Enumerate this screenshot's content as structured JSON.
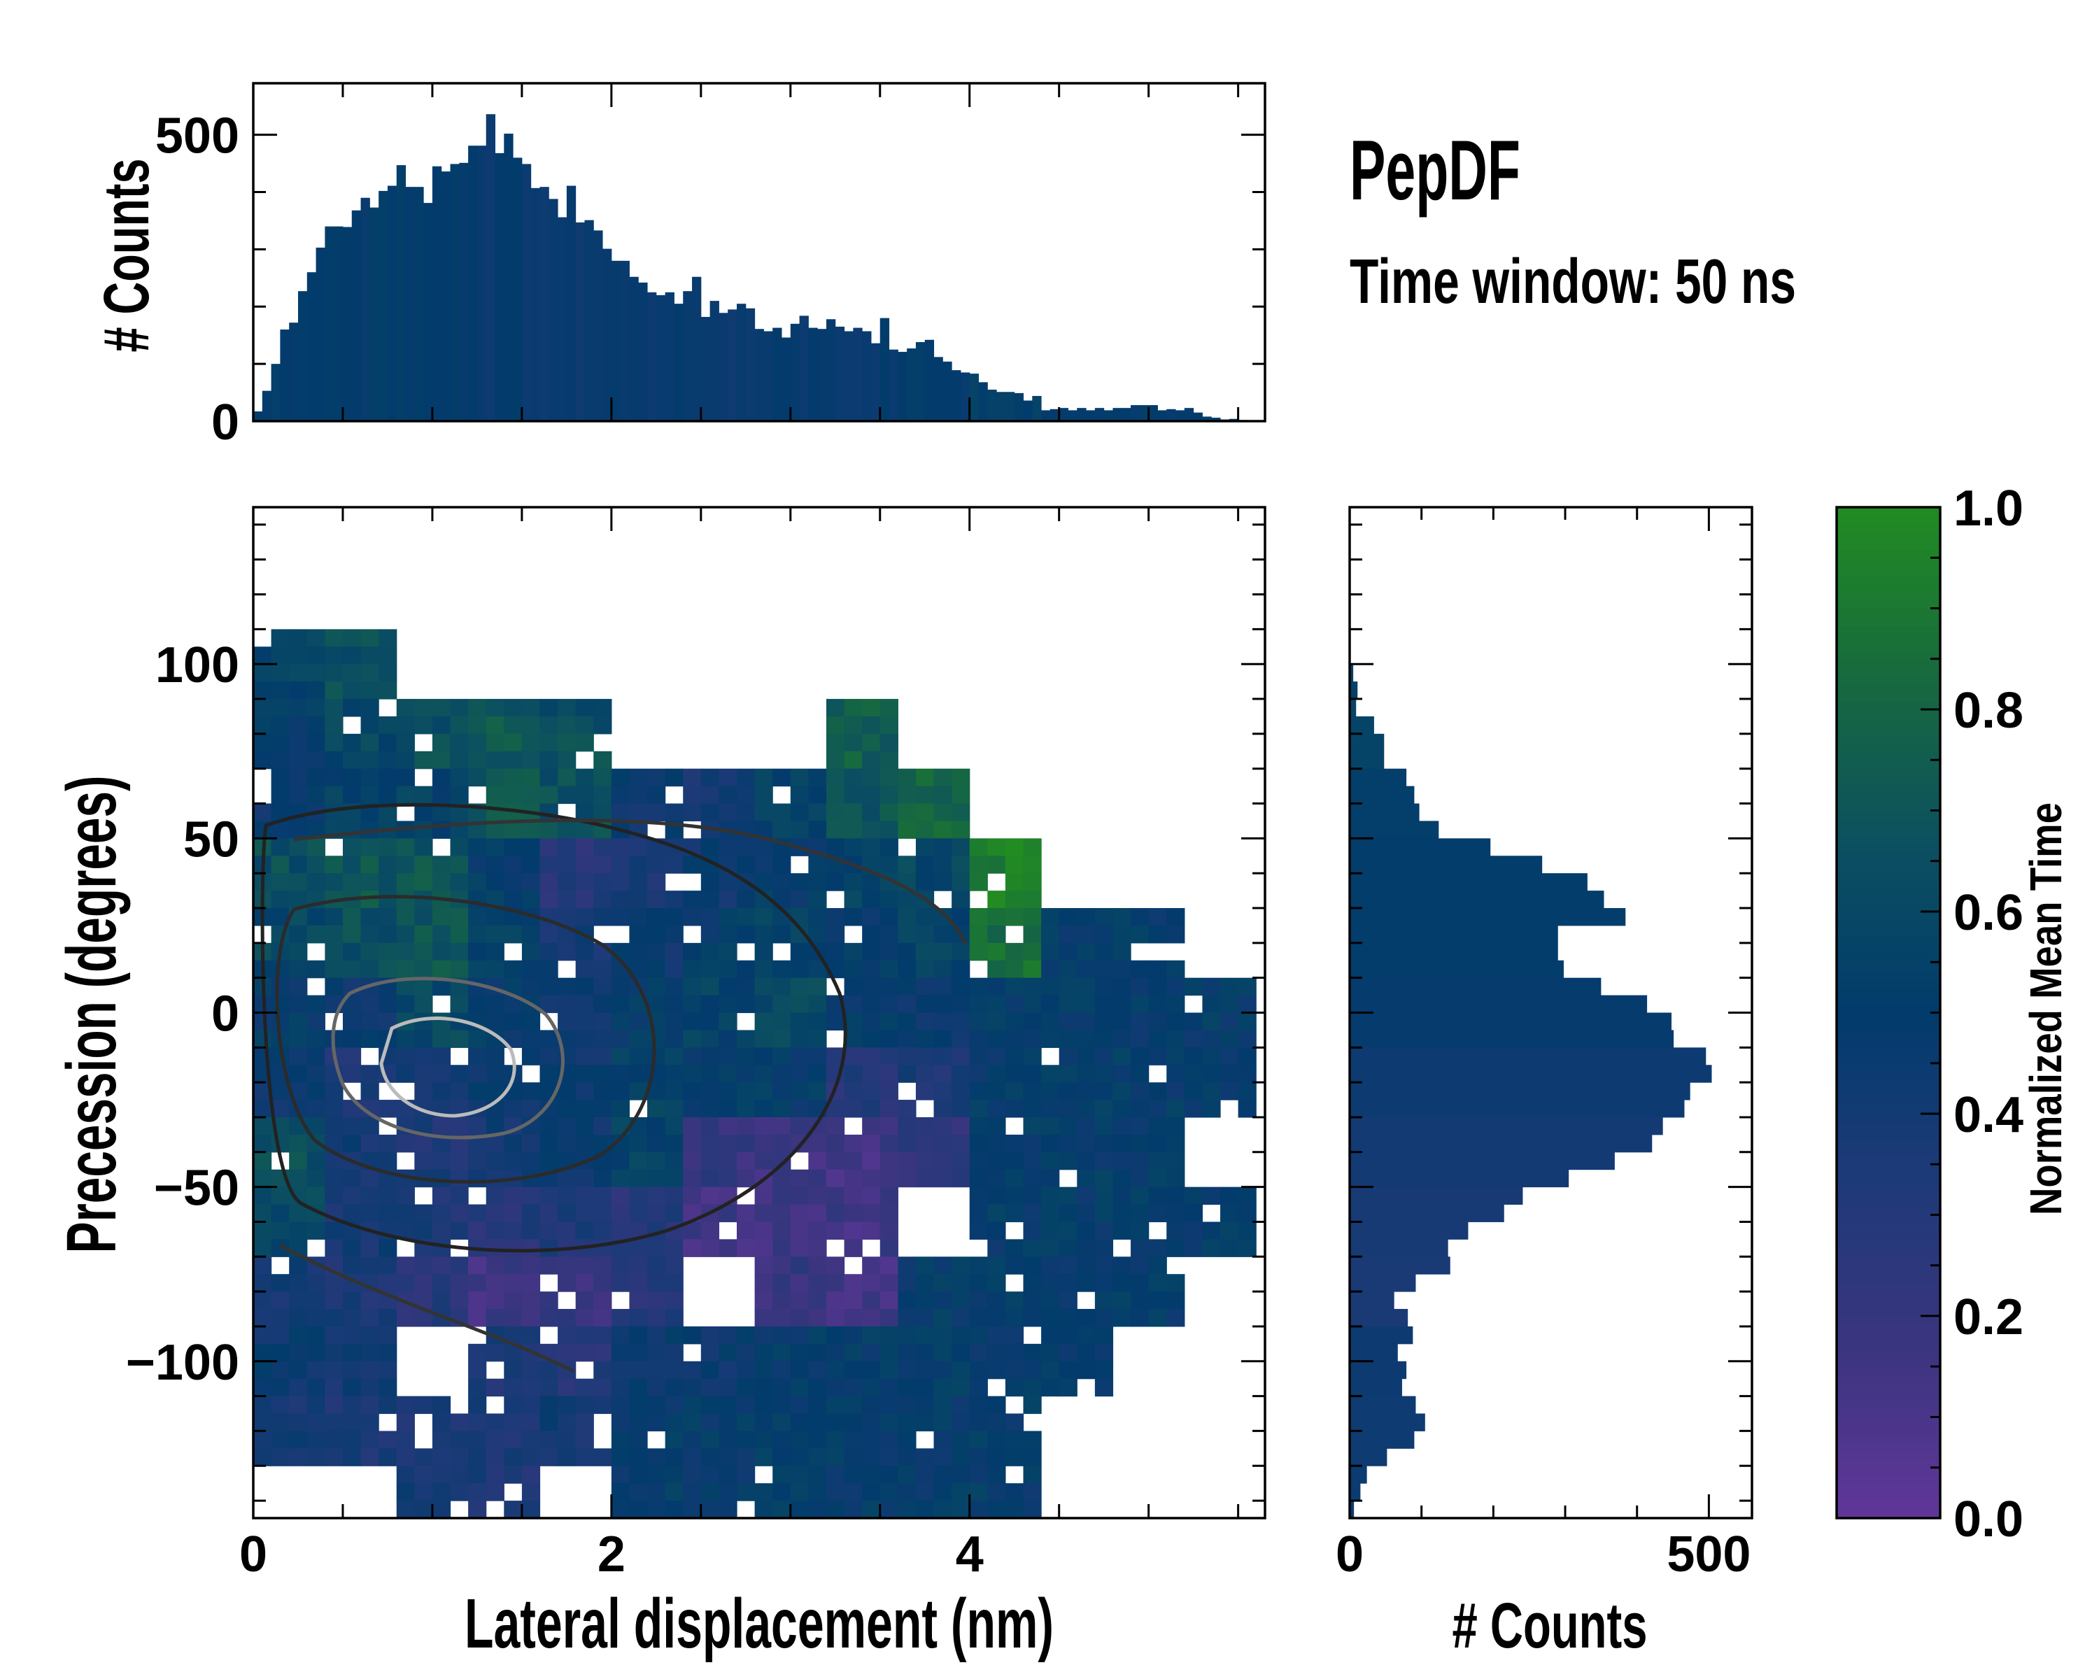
{
  "title": "PepDF",
  "subtitle": "Time window: 50 ns",
  "chart_data": [
    {
      "type": "heatmap",
      "name": "main",
      "xlabel": "Lateral displacement (nm)",
      "ylabel": "Precession (degrees)",
      "xlim": [
        0,
        5.65
      ],
      "ylim": [
        -145,
        145
      ],
      "xticks": [
        "0",
        "2",
        "4"
      ],
      "xtick_values": [
        0,
        2,
        4
      ],
      "yticks": [
        "100",
        "50",
        "0",
        "−50",
        "−100"
      ],
      "ytick_values": [
        100,
        50,
        0,
        -50,
        -100
      ],
      "x_bin_edges_start": 0,
      "x_bin_width": 0.4,
      "y_bin_centers": [
        140,
        120,
        100,
        80,
        60,
        40,
        20,
        0,
        -20,
        -40,
        -60,
        -80,
        -100,
        -120,
        -140
      ],
      "y_bin_height": 20,
      "values": [
        [
          null,
          null,
          null,
          null,
          null,
          null,
          null,
          null,
          null,
          null,
          null,
          null,
          null,
          null
        ],
        [
          null,
          null,
          null,
          null,
          null,
          null,
          null,
          null,
          null,
          null,
          null,
          null,
          null,
          null
        ],
        [
          0.55,
          0.65,
          null,
          null,
          null,
          null,
          null,
          null,
          null,
          null,
          null,
          null,
          null,
          null
        ],
        [
          0.5,
          0.6,
          0.65,
          0.7,
          0.65,
          null,
          null,
          null,
          0.75,
          null,
          null,
          null,
          null,
          null
        ],
        [
          0.45,
          0.55,
          0.55,
          0.7,
          0.65,
          0.45,
          0.4,
          0.55,
          0.7,
          0.8,
          null,
          null,
          null,
          null
        ],
        [
          0.65,
          0.7,
          0.7,
          0.5,
          0.3,
          0.35,
          0.45,
          0.5,
          0.55,
          0.6,
          0.95,
          null,
          null,
          null
        ],
        [
          0.6,
          0.65,
          0.7,
          0.55,
          0.4,
          0.45,
          0.5,
          0.55,
          0.5,
          0.55,
          0.85,
          0.5,
          0.5,
          null
        ],
        [
          0.5,
          0.45,
          0.6,
          0.5,
          0.45,
          0.5,
          0.55,
          0.6,
          0.5,
          0.45,
          0.5,
          0.5,
          0.5,
          0.5
        ],
        [
          0.45,
          0.35,
          0.4,
          0.45,
          0.45,
          0.55,
          0.5,
          0.5,
          0.3,
          0.35,
          0.5,
          0.5,
          0.5,
          0.5
        ],
        [
          0.65,
          0.4,
          0.35,
          0.4,
          0.45,
          0.55,
          0.2,
          0.15,
          0.15,
          0.25,
          0.5,
          0.5,
          0.5,
          null
        ],
        [
          0.6,
          0.4,
          0.35,
          0.3,
          0.35,
          0.3,
          0.15,
          0.15,
          0.15,
          null,
          0.5,
          0.5,
          0.5,
          0.5
        ],
        [
          0.4,
          0.35,
          0.3,
          0.15,
          0.2,
          0.3,
          null,
          0.2,
          0.15,
          0.5,
          0.5,
          0.5,
          0.5,
          null
        ],
        [
          0.45,
          0.4,
          null,
          0.35,
          0.3,
          0.45,
          0.45,
          0.5,
          0.5,
          0.5,
          0.5,
          0.5,
          null,
          null
        ],
        [
          0.4,
          0.35,
          0.35,
          0.35,
          0.4,
          0.5,
          0.5,
          0.5,
          0.5,
          0.5,
          0.5,
          null,
          null,
          null
        ],
        [
          null,
          null,
          0.4,
          0.35,
          null,
          0.5,
          0.5,
          0.5,
          0.5,
          0.5,
          0.5,
          null,
          null,
          null
        ]
      ]
    },
    {
      "type": "bar",
      "name": "top-histogram",
      "ylabel": "# Counts",
      "ylim": [
        0,
        590
      ],
      "yticks": [
        "0",
        "500"
      ],
      "ytick_values": [
        0,
        500
      ],
      "x_start": 0,
      "bin_width": 0.05,
      "values": [
        17,
        53,
        100,
        160,
        172,
        227,
        260,
        303,
        340,
        340,
        339,
        368,
        390,
        373,
        402,
        411,
        447,
        409,
        409,
        381,
        445,
        436,
        449,
        451,
        481,
        481,
        536,
        468,
        502,
        460,
        449,
        407,
        409,
        388,
        356,
        411,
        347,
        351,
        333,
        301,
        280,
        280,
        252,
        242,
        225,
        220,
        225,
        205,
        227,
        252,
        182,
        210,
        189,
        195,
        205,
        197,
        161,
        157,
        163,
        146,
        170,
        184,
        163,
        161,
        178,
        165,
        157,
        163,
        157,
        136,
        180,
        125,
        121,
        127,
        138,
        142,
        112,
        104,
        89,
        85,
        83,
        68,
        55,
        51,
        51,
        49,
        36,
        44,
        19,
        21,
        23,
        19,
        23,
        19,
        23,
        19,
        23,
        23,
        28,
        28,
        28,
        19,
        21,
        19,
        23,
        15,
        8,
        6,
        3,
        4,
        2,
        1,
        1
      ]
    },
    {
      "type": "bar",
      "name": "right-histogram",
      "orientation": "horizontal",
      "xlabel": "# Counts",
      "xlim": [
        0,
        560
      ],
      "xticks": [
        "0",
        "500"
      ],
      "xtick_values": [
        0,
        500
      ],
      "y_start": 100,
      "bin_height": -5,
      "values": [
        5,
        11,
        9,
        34,
        48,
        48,
        79,
        90,
        97,
        124,
        196,
        268,
        331,
        354,
        384,
        290,
        290,
        298,
        350,
        414,
        448,
        451,
        496,
        504,
        474,
        466,
        436,
        421,
        369,
        305,
        241,
        215,
        165,
        137,
        140,
        92,
        62,
        81,
        88,
        67,
        79,
        73,
        92,
        105,
        90,
        52,
        24,
        15,
        6
      ]
    },
    {
      "type": "colorbar",
      "label": "Normalized Mean Time",
      "range": [
        0,
        1
      ],
      "ticks": [
        "0.0",
        "0.2",
        "0.4",
        "0.6",
        "0.8",
        "1.0"
      ],
      "tick_values": [
        0,
        0.2,
        0.4,
        0.6,
        0.8,
        1.0
      ],
      "colors": [
        "#61369a",
        "#3b357f",
        "#1e3a78",
        "#023b6c",
        "#0c5060",
        "#176a3e",
        "#228b22"
      ]
    }
  ]
}
